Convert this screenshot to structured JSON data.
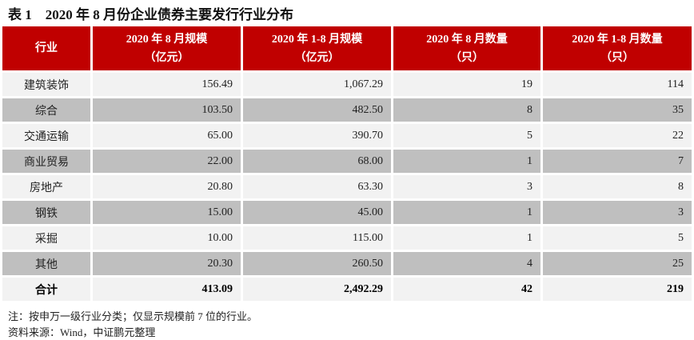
{
  "title": "表 1    2020 年 8 月份企业债券主要发行行业分布",
  "colors": {
    "header": "#c00000",
    "row_light": "#f2f2f2",
    "row_dark": "#bfbfbf"
  },
  "headers": [
    {
      "line1": "行业",
      "line2": ""
    },
    {
      "line1": "2020 年 8 月规模",
      "line2": "（亿元）"
    },
    {
      "line1": "2020 年 1-8 月规模",
      "line2": "（亿元）"
    },
    {
      "line1": "2020 年 8 月数量",
      "line2": "（只）"
    },
    {
      "line1": "2020 年 1-8 月数量",
      "line2": "（只）"
    }
  ],
  "rows": [
    [
      "建筑装饰",
      "156.49",
      "1,067.29",
      "19",
      "114"
    ],
    [
      "综合",
      "103.50",
      "482.50",
      "8",
      "35"
    ],
    [
      "交通运输",
      "65.00",
      "390.70",
      "5",
      "22"
    ],
    [
      "商业贸易",
      "22.00",
      "68.00",
      "1",
      "7"
    ],
    [
      "房地产",
      "20.80",
      "63.30",
      "3",
      "8"
    ],
    [
      "钢铁",
      "15.00",
      "45.00",
      "1",
      "3"
    ],
    [
      "采掘",
      "10.00",
      "115.00",
      "1",
      "5"
    ],
    [
      "其他",
      "20.30",
      "260.50",
      "4",
      "25"
    ]
  ],
  "total": [
    "合计",
    "413.09",
    "2,492.29",
    "42",
    "219"
  ],
  "note": "注：按申万一级行业分类；仅显示规模前 7 位的行业。",
  "source": "资料来源：Wind，中证鹏元整理"
}
